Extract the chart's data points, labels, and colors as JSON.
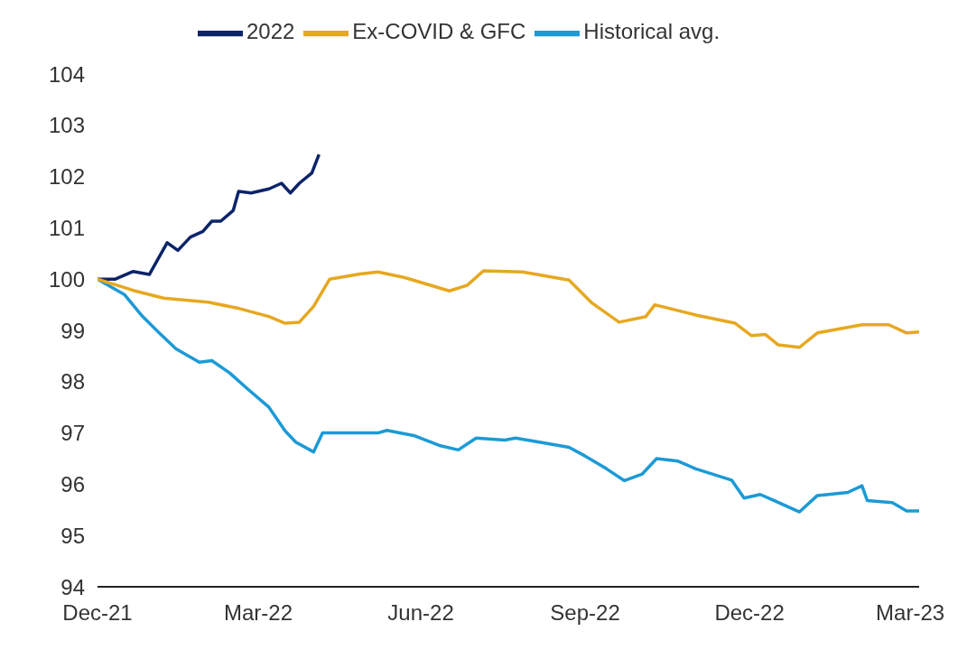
{
  "chart_data": {
    "type": "line",
    "legend": "top",
    "grid": false,
    "marker": "none",
    "line_style": "solid",
    "xlim": [
      "2021-12-31",
      "2023-04-05"
    ],
    "xticks": [
      {
        "value": "2021-12-31",
        "label": "Dec-21"
      },
      {
        "value": "2022-03-31",
        "label": "Mar-22"
      },
      {
        "value": "2022-06-30",
        "label": "Jun-22"
      },
      {
        "value": "2022-09-30",
        "label": "Sep-22"
      },
      {
        "value": "2022-12-31",
        "label": "Dec-22"
      },
      {
        "value": "2023-03-31",
        "label": "Mar-23"
      }
    ],
    "ylim": [
      94,
      104
    ],
    "yticks": [
      94,
      95,
      96,
      97,
      98,
      99,
      100,
      101,
      102,
      103,
      104
    ],
    "series": [
      {
        "name": "2022",
        "color": "#0c2468",
        "x": [
          "2021-12-31",
          "2022-01-10",
          "2022-01-20",
          "2022-01-29",
          "2022-02-08",
          "2022-02-14",
          "2022-02-21",
          "2022-02-28",
          "2022-03-05",
          "2022-03-10",
          "2022-03-17",
          "2022-03-20",
          "2022-03-27",
          "2022-04-06",
          "2022-04-13",
          "2022-04-18",
          "2022-04-23",
          "2022-04-30",
          "2022-05-04"
        ],
        "values": [
          100,
          100.0,
          100.15,
          100.09,
          100.71,
          100.56,
          100.82,
          100.93,
          101.13,
          101.13,
          101.34,
          101.71,
          101.68,
          101.76,
          101.87,
          101.68,
          101.87,
          102.07,
          102.43
        ]
      },
      {
        "name": "Historical avg.",
        "color": "#1c9ad6",
        "x": [
          "2021-12-31",
          "2022-01-15",
          "2022-01-25",
          "2022-02-03",
          "2022-02-13",
          "2022-02-26",
          "2022-03-05",
          "2022-03-15",
          "2022-03-25",
          "2022-04-06",
          "2022-04-15",
          "2022-04-21",
          "2022-05-01",
          "2022-05-06",
          "2022-06-06",
          "2022-06-11",
          "2022-06-26",
          "2022-07-11",
          "2022-07-21",
          "2022-07-31",
          "2022-08-16",
          "2022-08-22",
          "2022-09-08",
          "2022-09-21",
          "2022-09-30",
          "2022-10-12",
          "2022-10-22",
          "2022-11-01",
          "2022-11-09",
          "2022-11-21",
          "2022-12-01",
          "2022-12-21",
          "2022-12-28",
          "2023-01-06",
          "2023-01-14",
          "2023-01-28",
          "2023-02-07",
          "2023-02-24",
          "2023-03-04",
          "2023-03-07",
          "2023-03-21",
          "2023-03-29",
          "2023-04-05"
        ],
        "values": [
          100,
          99.7,
          99.28,
          98.97,
          98.64,
          98.38,
          98.41,
          98.17,
          97.86,
          97.5,
          97.04,
          96.82,
          96.63,
          97.0,
          97.0,
          97.05,
          96.95,
          96.75,
          96.67,
          96.9,
          96.86,
          96.9,
          96.8,
          96.72,
          96.55,
          96.3,
          96.07,
          96.2,
          96.5,
          96.45,
          96.3,
          96.08,
          95.73,
          95.8,
          95.68,
          95.46,
          95.78,
          95.84,
          95.97,
          95.68,
          95.64,
          95.48,
          95.48
        ]
      },
      {
        "name": "Ex-COVID & GFC",
        "color": "#e6a820",
        "x": [
          "2021-12-31",
          "2022-01-20",
          "2022-02-06",
          "2022-03-03",
          "2022-03-20",
          "2022-04-06",
          "2022-04-15",
          "2022-04-23",
          "2022-05-01",
          "2022-05-10",
          "2022-05-27",
          "2022-06-06",
          "2022-06-21",
          "2022-07-16",
          "2022-07-26",
          "2022-08-04",
          "2022-08-26",
          "2022-09-21",
          "2022-10-04",
          "2022-10-19",
          "2022-11-03",
          "2022-11-08",
          "2022-12-01",
          "2022-12-23",
          "2023-01-01",
          "2023-01-09",
          "2023-01-16",
          "2023-01-28",
          "2023-02-07",
          "2023-03-04",
          "2023-03-19",
          "2023-03-29",
          "2023-04-05"
        ],
        "values": [
          100,
          99.78,
          99.63,
          99.55,
          99.43,
          99.27,
          99.14,
          99.16,
          99.47,
          100.0,
          100.1,
          100.14,
          100.03,
          99.77,
          99.88,
          100.16,
          100.14,
          99.98,
          99.53,
          99.16,
          99.27,
          99.5,
          99.3,
          99.14,
          98.9,
          98.92,
          98.72,
          98.67,
          98.95,
          99.11,
          99.11,
          98.95,
          98.97
        ]
      }
    ]
  }
}
